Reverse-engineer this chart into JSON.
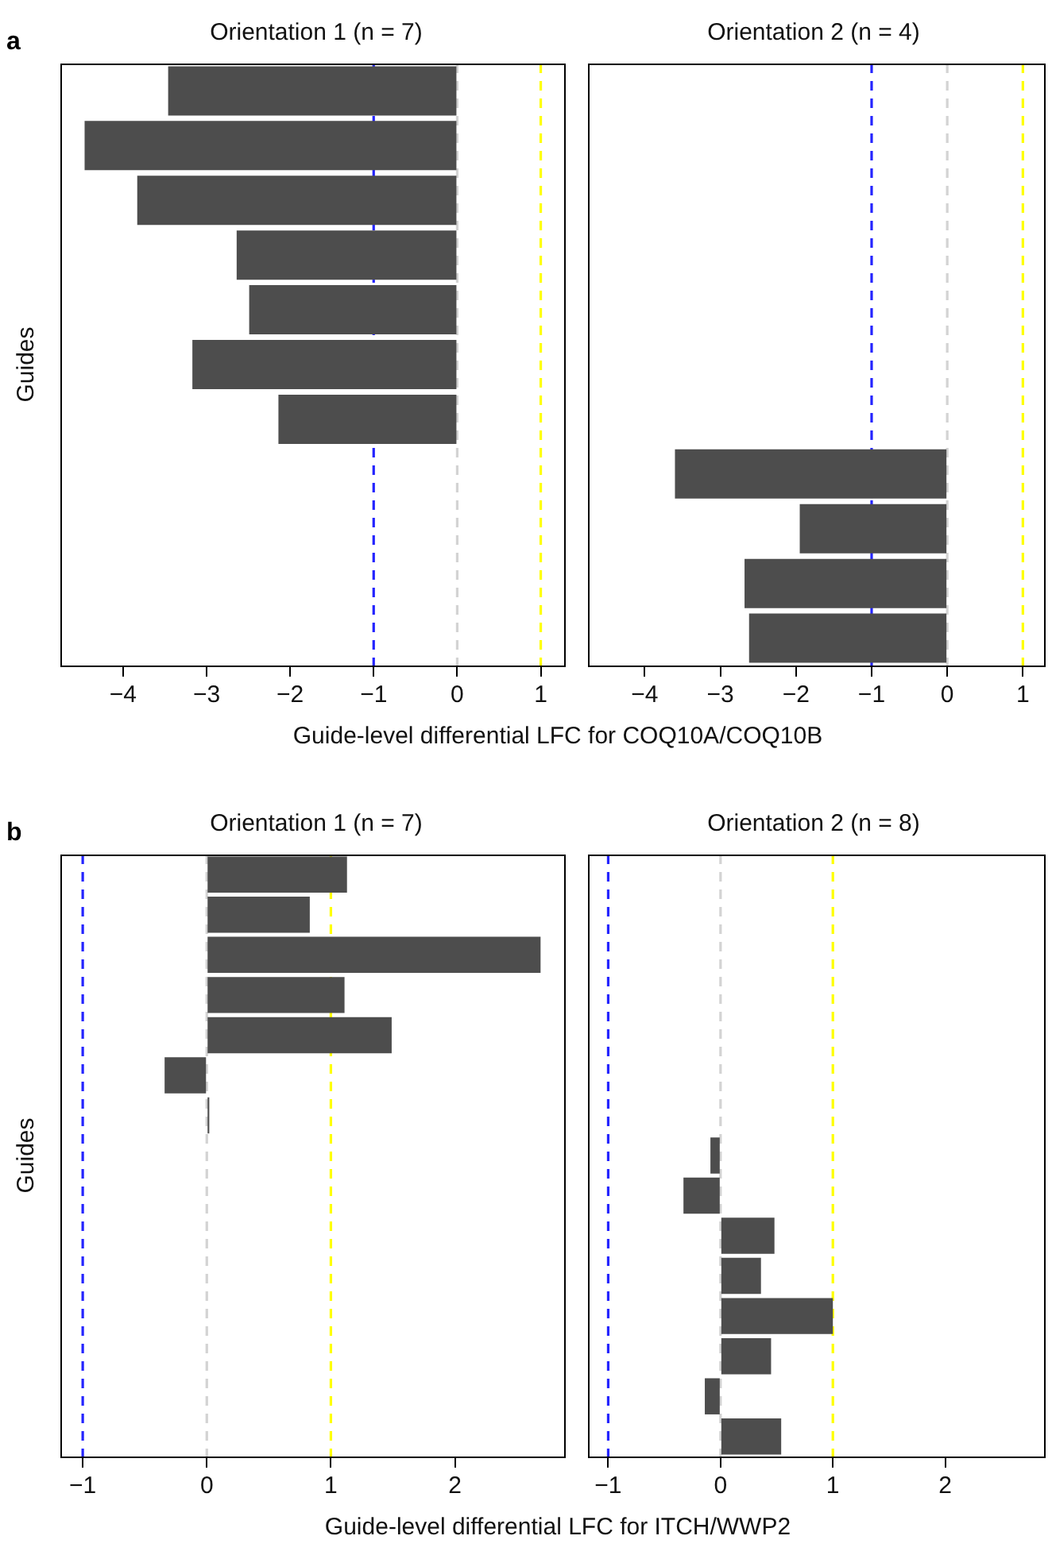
{
  "chart_data": [
    {
      "type": "bar",
      "orientation": "horizontal",
      "title": "Orientation 1 (n = 7)",
      "ylabel": "Guides",
      "xlabel": "Guide-level differential LFC for COQ10A/COQ10B",
      "annotations": [
        "a"
      ],
      "categories": [
        null,
        null,
        null,
        null,
        null,
        null,
        null,
        null,
        null,
        null,
        null
      ],
      "values": [
        -3.46,
        -4.46,
        -3.83,
        -2.64,
        -2.49,
        -3.17,
        -2.14,
        null,
        null,
        null,
        null
      ],
      "color": "#4d4d4d",
      "xlim": [
        -4.75,
        1.28
      ],
      "xticks": [
        -4,
        -3,
        -2,
        -1,
        0,
        1
      ],
      "tick_labels": "x",
      "grid": false,
      "legend": false,
      "ref_lines": [
        {
          "axis": "x",
          "value": -1,
          "color": "#2424ff",
          "line_style": "dashed"
        },
        {
          "axis": "x",
          "value": 0,
          "color": "#d3d3d3",
          "line_style": "dashed"
        },
        {
          "axis": "x",
          "value": 1,
          "color": "#ffff00",
          "line_style": "dashed"
        }
      ]
    },
    {
      "type": "bar",
      "orientation": "horizontal",
      "title": "Orientation 2 (n = 4)",
      "categories": [
        null,
        null,
        null,
        null,
        null,
        null,
        null,
        null,
        null,
        null,
        null
      ],
      "values": [
        null,
        null,
        null,
        null,
        null,
        null,
        null,
        -3.6,
        -1.95,
        -2.68,
        -2.62
      ],
      "color": "#4d4d4d",
      "xlim": [
        -4.75,
        1.28
      ],
      "xticks": [
        -4,
        -3,
        -2,
        -1,
        0,
        1
      ],
      "tick_labels": "x",
      "grid": false,
      "legend": false,
      "ref_lines": [
        {
          "axis": "x",
          "value": -1,
          "color": "#2424ff",
          "line_style": "dashed"
        },
        {
          "axis": "x",
          "value": 0,
          "color": "#d3d3d3",
          "line_style": "dashed"
        },
        {
          "axis": "x",
          "value": 1,
          "color": "#ffff00",
          "line_style": "dashed"
        }
      ]
    },
    {
      "type": "bar",
      "orientation": "horizontal",
      "title": "Orientation 1 (n = 7)",
      "ylabel": "Guides",
      "xlabel": "Guide-level differential LFC for ITCH/WWP2",
      "annotations": [
        "b"
      ],
      "categories": [
        null,
        null,
        null,
        null,
        null,
        null,
        null,
        null,
        null,
        null,
        null,
        null,
        null,
        null,
        null
      ],
      "values": [
        1.13,
        0.83,
        2.69,
        1.11,
        1.49,
        -0.34,
        0.02,
        null,
        null,
        null,
        null,
        null,
        null,
        null,
        null
      ],
      "color": "#4d4d4d",
      "xlim": [
        -1.18,
        2.88
      ],
      "xticks": [
        -1,
        0,
        1,
        2
      ],
      "tick_labels": "x",
      "grid": false,
      "legend": false,
      "ref_lines": [
        {
          "axis": "x",
          "value": -1,
          "color": "#2424ff",
          "line_style": "dashed"
        },
        {
          "axis": "x",
          "value": 0,
          "color": "#d3d3d3",
          "line_style": "dashed"
        },
        {
          "axis": "x",
          "value": 1,
          "color": "#ffff00",
          "line_style": "dashed"
        }
      ]
    },
    {
      "type": "bar",
      "orientation": "horizontal",
      "title": "Orientation 2 (n = 8)",
      "categories": [
        null,
        null,
        null,
        null,
        null,
        null,
        null,
        null,
        null,
        null,
        null,
        null,
        null,
        null,
        null
      ],
      "values": [
        null,
        null,
        null,
        null,
        null,
        null,
        null,
        -0.09,
        -0.33,
        0.48,
        0.36,
        1.0,
        0.45,
        -0.14,
        0.54
      ],
      "color": "#4d4d4d",
      "xlim": [
        -1.18,
        2.88
      ],
      "xticks": [
        -1,
        0,
        1,
        2
      ],
      "tick_labels": "x",
      "grid": false,
      "legend": false,
      "ref_lines": [
        {
          "axis": "x",
          "value": -1,
          "color": "#2424ff",
          "line_style": "dashed"
        },
        {
          "axis": "x",
          "value": 0,
          "color": "#d3d3d3",
          "line_style": "dashed"
        },
        {
          "axis": "x",
          "value": 1,
          "color": "#ffff00",
          "line_style": "dashed"
        }
      ]
    }
  ]
}
